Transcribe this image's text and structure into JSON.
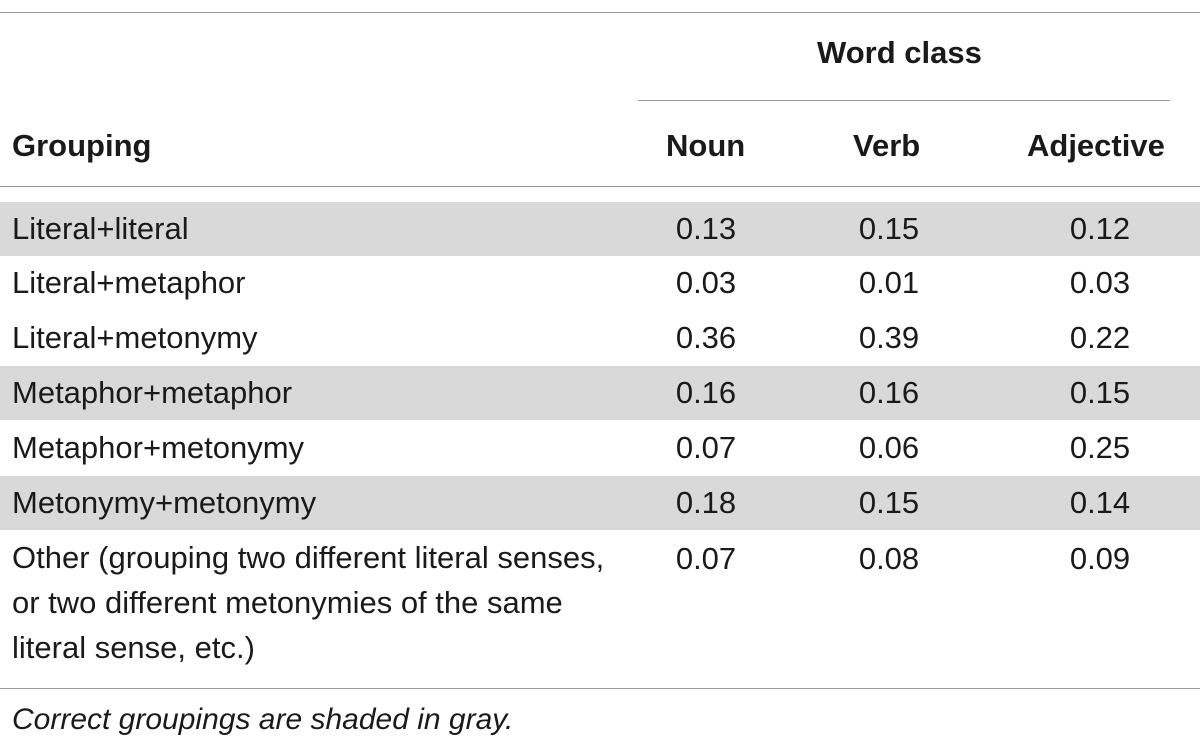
{
  "header": {
    "group_title": "Word class",
    "row_header": "Grouping",
    "columns": [
      "Noun",
      "Verb",
      "Adjective"
    ]
  },
  "rows": [
    {
      "grouping": "Literal+literal",
      "noun": "0.13",
      "verb": "0.15",
      "adjective": "0.12",
      "shaded": true
    },
    {
      "grouping": "Literal+metaphor",
      "noun": "0.03",
      "verb": "0.01",
      "adjective": "0.03",
      "shaded": false
    },
    {
      "grouping": "Literal+metonymy",
      "noun": "0.36",
      "verb": "0.39",
      "adjective": "0.22",
      "shaded": false
    },
    {
      "grouping": "Metaphor+metaphor",
      "noun": "0.16",
      "verb": "0.16",
      "adjective": "0.15",
      "shaded": true
    },
    {
      "grouping": "Metaphor+metonymy",
      "noun": "0.07",
      "verb": "0.06",
      "adjective": "0.25",
      "shaded": false
    },
    {
      "grouping": "Metonymy+metonymy",
      "noun": "0.18",
      "verb": "0.15",
      "adjective": "0.14",
      "shaded": true
    },
    {
      "grouping": "Other (grouping two different literal senses, or two different metonymies of the same literal sense, etc.)",
      "noun": "0.07",
      "verb": "0.08",
      "adjective": "0.09",
      "shaded": false
    }
  ],
  "footnote": "Correct groupings are shaded in gray.",
  "colors": {
    "shade": "#d9d9d9",
    "rule": "#9a9a9a",
    "text": "#1a1a1a"
  }
}
